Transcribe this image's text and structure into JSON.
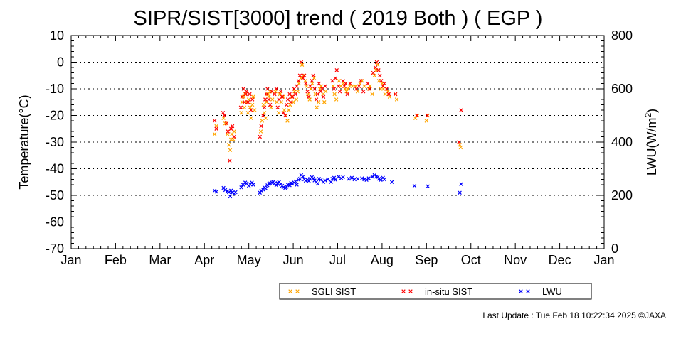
{
  "title": "SIPR/SIST[3000] trend ( 2019 Both ) ( EGP )",
  "footer": "Last Update : Tue Feb 18 10:22:34 2025  ©JAXA",
  "chart_data": {
    "type": "scatter",
    "title": "SIPR/SIST[3000] trend ( 2019 Both ) ( EGP )",
    "xlabel": "",
    "ylabel": "Temperature(°C)",
    "y2label": "LWU(W/m2)",
    "ylim": [
      -70,
      10
    ],
    "y2lim": [
      0,
      800
    ],
    "yticks": [
      10,
      0,
      -10,
      -20,
      -30,
      -40,
      -50,
      -60,
      -70
    ],
    "y2ticks": [
      800,
      600,
      400,
      200,
      0
    ],
    "xticks": [
      "Jan",
      "Feb",
      "Mar",
      "Apr",
      "May",
      "Jun",
      "Jul",
      "Aug",
      "Sep",
      "Oct",
      "Nov",
      "Dec",
      "Jan"
    ],
    "x_unit": "month",
    "xlim": [
      0,
      12
    ],
    "grid": "horizontal dotted",
    "legend_position": "bottom-right",
    "colors": {
      "sgli": "#ffa500",
      "insitu": "#ff0000",
      "lwu": "#0000ff"
    },
    "series": [
      {
        "name": "SGLI SIST",
        "axis": "left",
        "points": [
          [
            3.23,
            -27
          ],
          [
            3.27,
            -24
          ],
          [
            3.43,
            -21
          ],
          [
            3.47,
            -23
          ],
          [
            3.52,
            -27
          ],
          [
            3.55,
            -31
          ],
          [
            3.58,
            -33
          ],
          [
            3.6,
            -29
          ],
          [
            3.62,
            -27
          ],
          [
            3.65,
            -29
          ],
          [
            3.67,
            -26
          ],
          [
            3.83,
            -19
          ],
          [
            3.85,
            -15
          ],
          [
            3.88,
            -13
          ],
          [
            3.9,
            -17
          ],
          [
            3.92,
            -12
          ],
          [
            3.95,
            -15
          ],
          [
            3.98,
            -19
          ],
          [
            4.0,
            -14
          ],
          [
            4.03,
            -17
          ],
          [
            4.05,
            -21
          ],
          [
            4.08,
            -16
          ],
          [
            4.1,
            -13
          ],
          [
            4.13,
            -18
          ],
          [
            4.27,
            -26
          ],
          [
            4.3,
            -22
          ],
          [
            4.33,
            -16
          ],
          [
            4.35,
            -19
          ],
          [
            4.38,
            -21
          ],
          [
            4.4,
            -15
          ],
          [
            4.43,
            -12
          ],
          [
            4.45,
            -13
          ],
          [
            4.48,
            -11
          ],
          [
            4.5,
            -17
          ],
          [
            4.53,
            -14
          ],
          [
            4.6,
            -11
          ],
          [
            4.63,
            -15
          ],
          [
            4.67,
            -19
          ],
          [
            4.7,
            -12
          ],
          [
            4.73,
            -15
          ],
          [
            4.77,
            -13
          ],
          [
            4.8,
            -18
          ],
          [
            4.83,
            -20
          ],
          [
            4.87,
            -22
          ],
          [
            4.9,
            -18
          ],
          [
            4.93,
            -16
          ],
          [
            4.97,
            -13
          ],
          [
            5.0,
            -15
          ],
          [
            5.03,
            -11
          ],
          [
            5.07,
            -14
          ],
          [
            5.1,
            -11
          ],
          [
            5.13,
            -8
          ],
          [
            5.17,
            -6
          ],
          [
            5.2,
            -1
          ],
          [
            5.23,
            -5
          ],
          [
            5.27,
            -7
          ],
          [
            5.3,
            -9
          ],
          [
            5.33,
            -12
          ],
          [
            5.37,
            -14
          ],
          [
            5.4,
            -10
          ],
          [
            5.43,
            -8
          ],
          [
            5.47,
            -6
          ],
          [
            5.5,
            -12
          ],
          [
            5.53,
            -17
          ],
          [
            5.57,
            -15
          ],
          [
            5.6,
            -10
          ],
          [
            5.63,
            -9
          ],
          [
            5.67,
            -12
          ],
          [
            5.7,
            -15
          ],
          [
            5.73,
            -11
          ],
          [
            5.9,
            -9
          ],
          [
            5.93,
            -12
          ],
          [
            5.97,
            -14
          ],
          [
            6.03,
            -7
          ],
          [
            6.07,
            -9
          ],
          [
            6.13,
            -8
          ],
          [
            6.17,
            -10
          ],
          [
            6.2,
            -11
          ],
          [
            6.23,
            -10
          ],
          [
            6.27,
            -9
          ],
          [
            6.33,
            -9
          ],
          [
            6.4,
            -9
          ],
          [
            6.45,
            -11
          ],
          [
            6.5,
            -8
          ],
          [
            6.55,
            -7
          ],
          [
            6.6,
            -9
          ],
          [
            6.7,
            -10
          ],
          [
            6.73,
            -9
          ],
          [
            6.78,
            -12
          ],
          [
            6.83,
            -5
          ],
          [
            6.87,
            -3
          ],
          [
            6.9,
            -1
          ],
          [
            6.93,
            -7
          ],
          [
            6.97,
            -10
          ],
          [
            7.0,
            -8
          ],
          [
            7.03,
            -10
          ],
          [
            7.07,
            -12
          ],
          [
            7.13,
            -11
          ],
          [
            7.17,
            -13
          ],
          [
            7.3,
            -12
          ],
          [
            7.33,
            -14
          ],
          [
            7.75,
            -21
          ],
          [
            7.8,
            -20
          ],
          [
            8.0,
            -22
          ],
          [
            8.03,
            -20
          ],
          [
            8.75,
            -31
          ],
          [
            8.77,
            -32
          ]
        ]
      },
      {
        "name": "in-situ SIST",
        "axis": "left",
        "points": [
          [
            3.23,
            -22
          ],
          [
            3.27,
            -25
          ],
          [
            3.42,
            -19
          ],
          [
            3.45,
            -20
          ],
          [
            3.5,
            -23
          ],
          [
            3.53,
            -26
          ],
          [
            3.57,
            -37
          ],
          [
            3.6,
            -25
          ],
          [
            3.63,
            -24
          ],
          [
            3.67,
            -28
          ],
          [
            3.82,
            -17
          ],
          [
            3.85,
            -13
          ],
          [
            3.88,
            -10
          ],
          [
            3.9,
            -15
          ],
          [
            3.93,
            -12
          ],
          [
            3.95,
            -11
          ],
          [
            3.98,
            -15
          ],
          [
            4.02,
            -12
          ],
          [
            4.05,
            -18
          ],
          [
            4.08,
            -14
          ],
          [
            4.25,
            -28
          ],
          [
            4.28,
            -24
          ],
          [
            4.32,
            -20
          ],
          [
            4.35,
            -17
          ],
          [
            4.37,
            -14
          ],
          [
            4.4,
            -12
          ],
          [
            4.42,
            -10
          ],
          [
            4.45,
            -14
          ],
          [
            4.48,
            -16
          ],
          [
            4.52,
            -11
          ],
          [
            4.58,
            -12
          ],
          [
            4.62,
            -10
          ],
          [
            4.65,
            -17
          ],
          [
            4.68,
            -14
          ],
          [
            4.72,
            -11
          ],
          [
            4.75,
            -13
          ],
          [
            4.78,
            -19
          ],
          [
            4.82,
            -20
          ],
          [
            4.85,
            -16
          ],
          [
            4.88,
            -14
          ],
          [
            4.92,
            -12
          ],
          [
            4.95,
            -15
          ],
          [
            4.98,
            -13
          ],
          [
            5.02,
            -10
          ],
          [
            5.05,
            -12
          ],
          [
            5.08,
            -9
          ],
          [
            5.12,
            -7
          ],
          [
            5.15,
            -5
          ],
          [
            5.18,
            0
          ],
          [
            5.22,
            -6
          ],
          [
            5.25,
            -5
          ],
          [
            5.28,
            -8
          ],
          [
            5.32,
            -11
          ],
          [
            5.35,
            -13
          ],
          [
            5.38,
            -9
          ],
          [
            5.42,
            -7
          ],
          [
            5.45,
            -5
          ],
          [
            5.48,
            -10
          ],
          [
            5.52,
            -14
          ],
          [
            5.55,
            -12
          ],
          [
            5.58,
            -8
          ],
          [
            5.62,
            -11
          ],
          [
            5.65,
            -10
          ],
          [
            5.68,
            -13
          ],
          [
            5.72,
            -9
          ],
          [
            5.88,
            -7
          ],
          [
            5.92,
            -10
          ],
          [
            5.95,
            -6
          ],
          [
            5.98,
            -3
          ],
          [
            6.02,
            -9
          ],
          [
            6.05,
            -11
          ],
          [
            6.12,
            -7
          ],
          [
            6.15,
            -9
          ],
          [
            6.18,
            -8
          ],
          [
            6.22,
            -12
          ],
          [
            6.28,
            -8
          ],
          [
            6.42,
            -10
          ],
          [
            6.48,
            -9
          ],
          [
            6.52,
            -7
          ],
          [
            6.58,
            -11
          ],
          [
            6.68,
            -8
          ],
          [
            6.72,
            -10
          ],
          [
            6.8,
            -4
          ],
          [
            6.85,
            -2
          ],
          [
            6.88,
            0
          ],
          [
            6.92,
            -3
          ],
          [
            6.95,
            -5
          ],
          [
            6.98,
            -7
          ],
          [
            7.02,
            -9
          ],
          [
            7.05,
            -8
          ],
          [
            7.1,
            -10
          ],
          [
            7.15,
            -12
          ],
          [
            7.3,
            -12
          ],
          [
            7.78,
            -20
          ],
          [
            8.02,
            -20
          ],
          [
            8.73,
            -30
          ],
          [
            8.78,
            -18
          ]
        ]
      },
      {
        "name": "LWU",
        "axis": "right",
        "points": [
          [
            3.23,
            218
          ],
          [
            3.27,
            214
          ],
          [
            3.43,
            228
          ],
          [
            3.47,
            220
          ],
          [
            3.52,
            215
          ],
          [
            3.55,
            212
          ],
          [
            3.58,
            196
          ],
          [
            3.6,
            218
          ],
          [
            3.63,
            210
          ],
          [
            3.67,
            206
          ],
          [
            3.7,
            212
          ],
          [
            3.83,
            230
          ],
          [
            3.87,
            240
          ],
          [
            3.92,
            248
          ],
          [
            3.95,
            245
          ],
          [
            4.0,
            236
          ],
          [
            4.03,
            242
          ],
          [
            4.07,
            248
          ],
          [
            4.1,
            240
          ],
          [
            4.25,
            210
          ],
          [
            4.28,
            218
          ],
          [
            4.32,
            222
          ],
          [
            4.35,
            230
          ],
          [
            4.38,
            226
          ],
          [
            4.42,
            238
          ],
          [
            4.45,
            242
          ],
          [
            4.48,
            245
          ],
          [
            4.52,
            248
          ],
          [
            4.55,
            250
          ],
          [
            4.58,
            244
          ],
          [
            4.62,
            238
          ],
          [
            4.65,
            246
          ],
          [
            4.68,
            250
          ],
          [
            4.72,
            242
          ],
          [
            4.75,
            236
          ],
          [
            4.78,
            230
          ],
          [
            4.82,
            228
          ],
          [
            4.85,
            232
          ],
          [
            4.88,
            240
          ],
          [
            4.92,
            238
          ],
          [
            4.95,
            246
          ],
          [
            4.98,
            244
          ],
          [
            5.02,
            248
          ],
          [
            5.05,
            252
          ],
          [
            5.08,
            240
          ],
          [
            5.12,
            258
          ],
          [
            5.15,
            262
          ],
          [
            5.18,
            276
          ],
          [
            5.22,
            270
          ],
          [
            5.25,
            260
          ],
          [
            5.28,
            255
          ],
          [
            5.32,
            258
          ],
          [
            5.35,
            254
          ],
          [
            5.38,
            262
          ],
          [
            5.42,
            268
          ],
          [
            5.45,
            264
          ],
          [
            5.48,
            256
          ],
          [
            5.52,
            250
          ],
          [
            5.55,
            244
          ],
          [
            5.58,
            262
          ],
          [
            5.62,
            258
          ],
          [
            5.68,
            250
          ],
          [
            5.72,
            256
          ],
          [
            5.78,
            260
          ],
          [
            5.85,
            250
          ],
          [
            5.88,
            262
          ],
          [
            5.92,
            266
          ],
          [
            5.95,
            258
          ],
          [
            6.02,
            270
          ],
          [
            6.08,
            264
          ],
          [
            6.12,
            268
          ],
          [
            6.25,
            262
          ],
          [
            6.32,
            266
          ],
          [
            6.38,
            260
          ],
          [
            6.45,
            262
          ],
          [
            6.55,
            264
          ],
          [
            6.6,
            260
          ],
          [
            6.65,
            258
          ],
          [
            6.7,
            264
          ],
          [
            6.78,
            270
          ],
          [
            6.83,
            276
          ],
          [
            6.87,
            270
          ],
          [
            6.9,
            268
          ],
          [
            6.93,
            262
          ],
          [
            6.97,
            258
          ],
          [
            7.02,
            266
          ],
          [
            7.05,
            260
          ],
          [
            7.22,
            250
          ],
          [
            7.73,
            236
          ],
          [
            8.03,
            234
          ],
          [
            8.75,
            210
          ],
          [
            8.78,
            242
          ]
        ]
      }
    ]
  },
  "legend": {
    "items": [
      {
        "label": "SGLI SIST",
        "color": "#ffa500"
      },
      {
        "label": "in-situ SIST",
        "color": "#ff0000"
      },
      {
        "label": "LWU",
        "color": "#0000ff"
      }
    ]
  }
}
